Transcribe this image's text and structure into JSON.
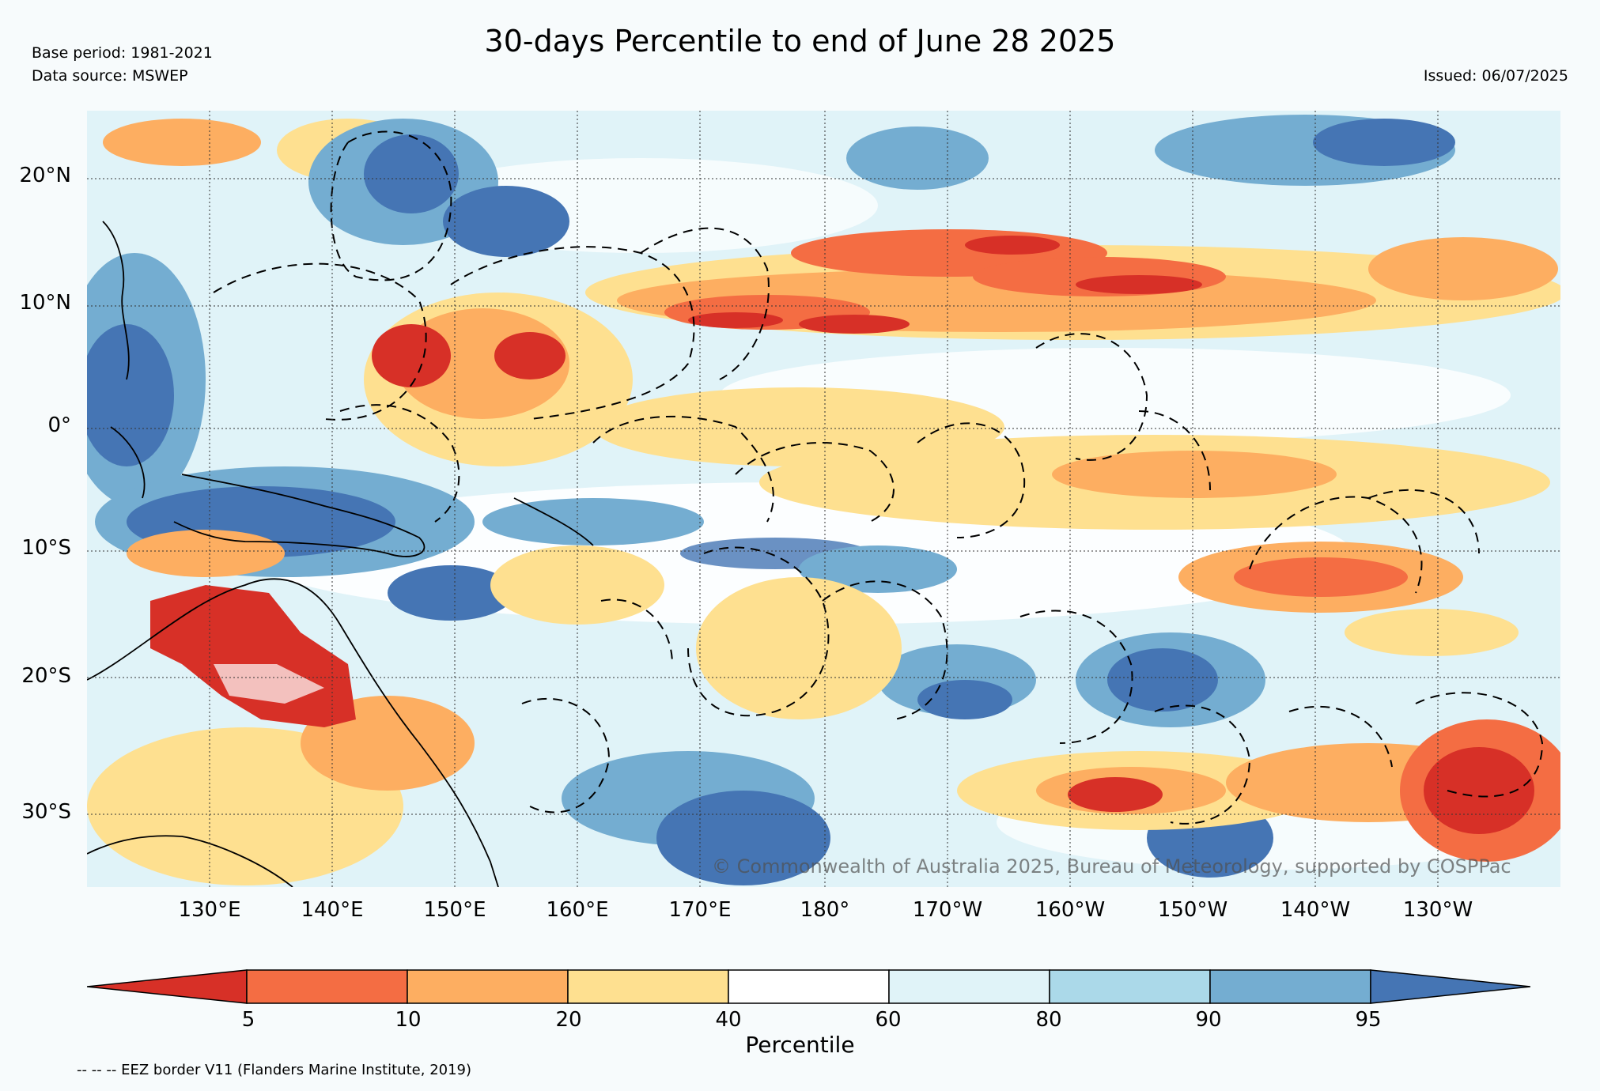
{
  "header": {
    "title": "30-days Percentile to end of June 28 2025",
    "base_period": "Base period: 1981-2021",
    "data_source": "Data source: MSWEP",
    "issued": "Issued: 06/07/2025"
  },
  "map": {
    "lat_labels": [
      "20°N",
      "10°N",
      "0°",
      "10°S",
      "20°S",
      "30°S"
    ],
    "lon_labels": [
      "130°E",
      "140°E",
      "150°E",
      "160°E",
      "170°E",
      "180°",
      "170°W",
      "160°W",
      "150°W",
      "140°W",
      "130°W"
    ],
    "copyright": "© Commonwealth of Australia 2025, Bureau of Meteorology, supported by COSPPac"
  },
  "colorbar": {
    "label": "Percentile",
    "ticks": [
      "5",
      "10",
      "20",
      "40",
      "60",
      "80",
      "90",
      "95"
    ],
    "colors": [
      "#d73027",
      "#f46d43",
      "#fdae61",
      "#fee090",
      "#ffffff",
      "#e0f3f8",
      "#abd9e9",
      "#74add1",
      "#4575b4"
    ]
  },
  "footer": {
    "eez_note": "-- -- -- EEZ border V11 (Flanders Marine Institute, 2019)"
  }
}
